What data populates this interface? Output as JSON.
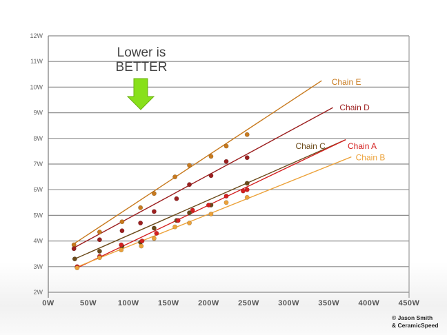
{
  "callout": {
    "line1": "Lower is",
    "line2": "BETTER",
    "arrow_color": "#88e01a"
  },
  "credit": {
    "line1": "© Jason Smith",
    "line2": "& CeramicSpeed"
  },
  "chart_data": {
    "type": "scatter",
    "title": "",
    "xlabel": "",
    "ylabel": "",
    "xlim": [
      0,
      450
    ],
    "ylim": [
      2,
      12
    ],
    "x_ticks": [
      "0W",
      "50W",
      "100W",
      "150W",
      "200W",
      "250W",
      "300W",
      "350W",
      "400W",
      "450W"
    ],
    "y_ticks": [
      "2W",
      "3W",
      "4W",
      "5W",
      "6W",
      "7W",
      "8W",
      "9W",
      "10W",
      "11W",
      "12W"
    ],
    "grid": true,
    "annotation": "Lower is BETTER",
    "series": [
      {
        "name": "Chain E",
        "color": "#c87a1e",
        "label_pos": [
          350,
          10.2
        ],
        "points": [
          [
            32,
            3.85
          ],
          [
            64,
            4.35
          ],
          [
            92,
            4.75
          ],
          [
            115,
            5.3
          ],
          [
            132,
            5.85
          ],
          [
            158,
            6.5
          ],
          [
            176,
            6.95
          ],
          [
            203,
            7.3
          ],
          [
            222,
            7.7
          ],
          [
            248,
            8.15
          ]
        ],
        "fit": [
          [
            30,
            3.85
          ],
          [
            341,
            10.25
          ]
        ]
      },
      {
        "name": "Chain D",
        "color": "#9c1f1f",
        "label_pos": [
          360,
          9.2
        ],
        "points": [
          [
            32,
            3.7
          ],
          [
            64,
            4.05
          ],
          [
            92,
            4.4
          ],
          [
            115,
            4.7
          ],
          [
            132,
            5.15
          ],
          [
            160,
            5.65
          ],
          [
            176,
            6.2
          ],
          [
            203,
            6.55
          ],
          [
            222,
            7.1
          ],
          [
            248,
            7.25
          ]
        ],
        "fit": [
          [
            30,
            3.7
          ],
          [
            355,
            9.2
          ]
        ]
      },
      {
        "name": "Chain C",
        "color": "#6b4a1a",
        "label_pos": [
          305,
          7.7
        ],
        "points": [
          [
            33,
            3.3
          ],
          [
            64,
            3.6
          ],
          [
            92,
            3.8
          ],
          [
            115,
            3.95
          ],
          [
            132,
            4.5
          ],
          [
            160,
            4.8
          ],
          [
            176,
            5.1
          ],
          [
            203,
            5.4
          ],
          [
            248,
            6.25
          ]
        ],
        "fit": [
          [
            33,
            3.3
          ],
          [
            371,
            7.95
          ]
        ]
      },
      {
        "name": "Chain A",
        "color": "#d42020",
        "label_pos": [
          370,
          7.7
        ],
        "points": [
          [
            36,
            3.0
          ],
          [
            64,
            3.4
          ],
          [
            91,
            3.85
          ],
          [
            117,
            4.0
          ],
          [
            135,
            4.3
          ],
          [
            162,
            4.8
          ],
          [
            180,
            5.2
          ],
          [
            200,
            5.4
          ],
          [
            222,
            5.75
          ],
          [
            243,
            5.95
          ],
          [
            248,
            6.0
          ]
        ],
        "fit": [
          [
            36,
            2.95
          ],
          [
            371,
            7.95
          ]
        ]
      },
      {
        "name": "Chain B",
        "color": "#eca23a",
        "label_pos": [
          380,
          7.25
        ],
        "points": [
          [
            36,
            2.95
          ],
          [
            64,
            3.35
          ],
          [
            91,
            3.65
          ],
          [
            116,
            3.8
          ],
          [
            132,
            4.1
          ],
          [
            158,
            4.55
          ],
          [
            176,
            4.7
          ],
          [
            203,
            5.05
          ],
          [
            222,
            5.5
          ],
          [
            248,
            5.7
          ]
        ],
        "fit": [
          [
            33,
            2.95
          ],
          [
            378,
            7.28
          ]
        ]
      }
    ]
  }
}
